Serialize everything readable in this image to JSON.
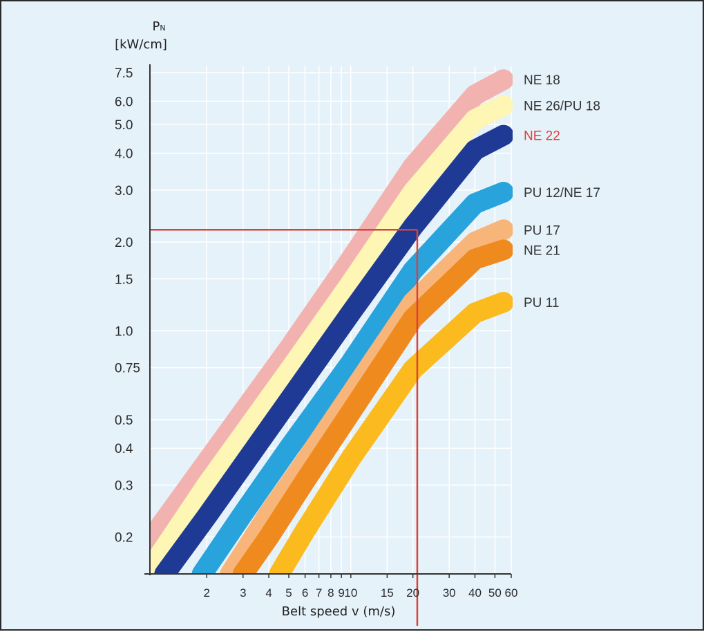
{
  "colors": {
    "background": "#e6f2fa",
    "axis": "#333333",
    "grid": "#ffffff",
    "marker": "#d9413a"
  },
  "chart_data": {
    "type": "line",
    "title": "",
    "ylabel_main": "P",
    "ylabel_sub": "N",
    "ylabel_units": "[kW/cm]",
    "xlabel": "Belt speed v (m/s)",
    "x_scale": "log",
    "y_scale": "log",
    "xlim": [
      1.06,
      60
    ],
    "ylim": [
      0.15,
      7.5
    ],
    "grid": true,
    "legend": "inline labels at right end of each band",
    "y_ticks": [
      {
        "value": 7.5,
        "label": "7.5"
      },
      {
        "value": 6.0,
        "label": "6.0"
      },
      {
        "value": 5.0,
        "label": "5.0"
      },
      {
        "value": 4.0,
        "label": "4.0"
      },
      {
        "value": 3.0,
        "label": "3.0"
      },
      {
        "value": 2.0,
        "label": "2.0"
      },
      {
        "value": 1.5,
        "label": "1.5"
      },
      {
        "value": 1.0,
        "label": "1.0"
      },
      {
        "value": 0.75,
        "label": "0.75"
      },
      {
        "value": 0.5,
        "label": "0.5"
      },
      {
        "value": 0.4,
        "label": "0.4"
      },
      {
        "value": 0.3,
        "label": "0.3"
      },
      {
        "value": 0.2,
        "label": "0.2"
      }
    ],
    "x_ticks": [
      {
        "value": 2,
        "label": "2"
      },
      {
        "value": 3,
        "label": "3"
      },
      {
        "value": 4,
        "label": "4"
      },
      {
        "value": 5,
        "label": "5"
      },
      {
        "value": 6,
        "label": "6"
      },
      {
        "value": 7,
        "label": "7"
      },
      {
        "value": 8,
        "label": "8"
      },
      {
        "value": 9,
        "label": "9"
      },
      {
        "value": 10,
        "label": "10"
      },
      {
        "value": 15,
        "label": "15"
      },
      {
        "value": 20,
        "label": "20"
      },
      {
        "value": 30,
        "label": "30"
      },
      {
        "value": 40,
        "label": "40"
      },
      {
        "value": 50,
        "label": "50"
      },
      {
        "value": 60,
        "label": "60"
      }
    ],
    "series": [
      {
        "name": "NE 18",
        "color": "#f2b3b0",
        "label_color": "#333333",
        "points": [
          [
            1.06,
            0.195
          ],
          [
            2,
            0.36
          ],
          [
            5,
            0.87
          ],
          [
            10,
            1.75
          ],
          [
            20,
            3.6
          ],
          [
            40,
            6.3
          ],
          [
            55,
            7.1
          ]
        ]
      },
      {
        "name": "NE 26/PU 18",
        "color": "#fdf6b5",
        "label_color": "#333333",
        "points": [
          [
            1.06,
            0.155
          ],
          [
            2,
            0.3
          ],
          [
            5,
            0.73
          ],
          [
            10,
            1.45
          ],
          [
            20,
            2.95
          ],
          [
            40,
            5.2
          ],
          [
            55,
            5.8
          ]
        ]
      },
      {
        "name": "NE 22",
        "color": "#1f3a94",
        "label_color": "#d9413a",
        "points": [
          [
            1.25,
            0.15
          ],
          [
            2,
            0.235
          ],
          [
            5,
            0.58
          ],
          [
            10,
            1.15
          ],
          [
            20,
            2.25
          ],
          [
            40,
            4.1
          ],
          [
            55,
            4.6
          ]
        ]
      },
      {
        "name": "PU 12/NE 17",
        "color": "#29a3dc",
        "label_color": "#333333",
        "points": [
          [
            1.9,
            0.15
          ],
          [
            3,
            0.24
          ],
          [
            5,
            0.4
          ],
          [
            10,
            0.78
          ],
          [
            20,
            1.6
          ],
          [
            40,
            2.7
          ],
          [
            55,
            2.95
          ]
        ]
      },
      {
        "name": "PU 17",
        "color": "#f8b57a",
        "label_color": "#333333",
        "points": [
          [
            2.6,
            0.15
          ],
          [
            4,
            0.24
          ],
          [
            6,
            0.36
          ],
          [
            10,
            0.61
          ],
          [
            20,
            1.25
          ],
          [
            40,
            2.0
          ],
          [
            55,
            2.2
          ]
        ]
      },
      {
        "name": "NE 21",
        "color": "#ee8a1e",
        "label_color": "#333333",
        "points": [
          [
            3.0,
            0.15
          ],
          [
            4,
            0.2
          ],
          [
            6,
            0.31
          ],
          [
            10,
            0.53
          ],
          [
            20,
            1.1
          ],
          [
            40,
            1.75
          ],
          [
            55,
            1.88
          ]
        ]
      },
      {
        "name": "PU 11",
        "color": "#fbbb1e",
        "label_color": "#333333",
        "points": [
          [
            4.5,
            0.15
          ],
          [
            6,
            0.21
          ],
          [
            10,
            0.37
          ],
          [
            20,
            0.74
          ],
          [
            40,
            1.15
          ],
          [
            55,
            1.25
          ]
        ]
      }
    ],
    "marker_lines": {
      "x": 21,
      "y": 2.2
    }
  }
}
